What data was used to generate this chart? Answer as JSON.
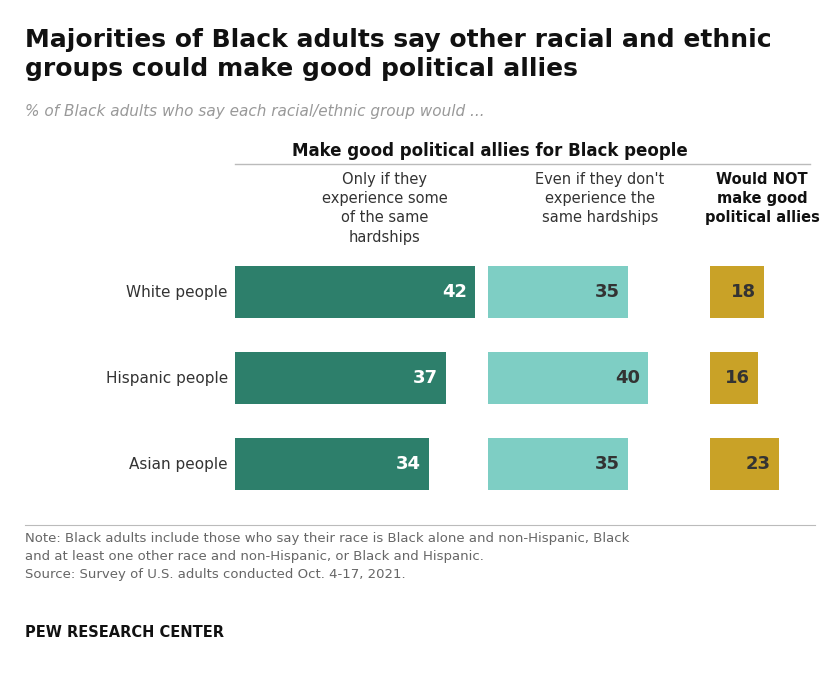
{
  "title": "Majorities of Black adults say other racial and ethnic\ngroups could make good political allies",
  "subtitle": "% of Black adults who say each racial/ethnic group would ...",
  "section_header": "Make good political allies for Black people",
  "categories": [
    "White people",
    "Hispanic people",
    "Asian people"
  ],
  "col1_label": "Only if they\nexperience some\nof the same\nhardships",
  "col2_label": "Even if they don't\nexperience the\nsame hardships",
  "col3_label": "Would NOT\nmake good\npolitical allies",
  "col1_values": [
    42,
    37,
    34
  ],
  "col2_values": [
    35,
    40,
    35
  ],
  "col3_values": [
    18,
    16,
    23
  ],
  "col1_color": "#2d7f6b",
  "col2_color": "#7ecec4",
  "col3_color": "#c9a227",
  "note_line1": "Note: Black adults include those who say their race is Black alone and non-Hispanic, Black",
  "note_line2": "and at least one other race and non-Hispanic, or Black and Hispanic.",
  "note_line3": "Source: Survey of U.S. adults conducted Oct. 4-17, 2021.",
  "footer": "PEW RESEARCH CENTER",
  "background_color": "#ffffff"
}
